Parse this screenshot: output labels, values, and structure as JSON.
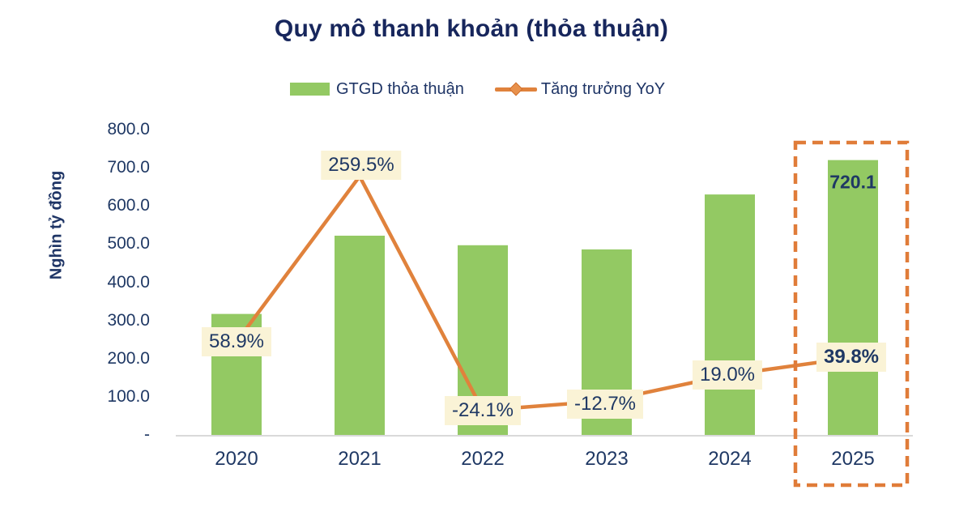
{
  "chart_data": {
    "type": "bar",
    "subtype": "combo-bar-line",
    "title": "Quy mô thanh khoản (thỏa thuận)",
    "ylabel": "Nghìn tỷ đồng",
    "xlabel": "",
    "categories": [
      "2020",
      "2021",
      "2022",
      "2023",
      "2024",
      "2025"
    ],
    "series": [
      {
        "name": "GTGD thỏa thuận",
        "type": "bar",
        "unit": "nghìn tỷ đồng",
        "values": [
          317,
          522,
          497,
          486,
          630,
          720.1
        ]
      },
      {
        "name": "Tăng trưởng YoY",
        "type": "line",
        "unit": "%",
        "values": [
          58.9,
          259.5,
          -24.1,
          -12.7,
          19.0,
          39.8
        ]
      }
    ],
    "point_labels": [
      {
        "text": "58.9%",
        "bold": false
      },
      {
        "text": "259.5%",
        "bold": false
      },
      {
        "text": "-24.1%",
        "bold": false
      },
      {
        "text": "-12.7%",
        "bold": false
      },
      {
        "text": "19.0%",
        "bold": false
      },
      {
        "text": "39.8%",
        "bold": true
      }
    ],
    "bar_label": {
      "index": 5,
      "text": "720.1"
    },
    "y_ticks": [
      "800.0",
      "700.0",
      "600.0",
      "500.0",
      "400.0",
      "300.0",
      "200.0",
      "100.0",
      "-"
    ],
    "ylim": [
      0,
      800
    ],
    "grid": false,
    "legend_position": "top",
    "highlight_category": "2025",
    "colors": {
      "bar": "#93c963",
      "line": "#e0823c",
      "label_bg": "#faf3d6",
      "text": "#1f3864",
      "axis_line": "#d9d9d9",
      "highlight_box": "#e07c39"
    }
  }
}
